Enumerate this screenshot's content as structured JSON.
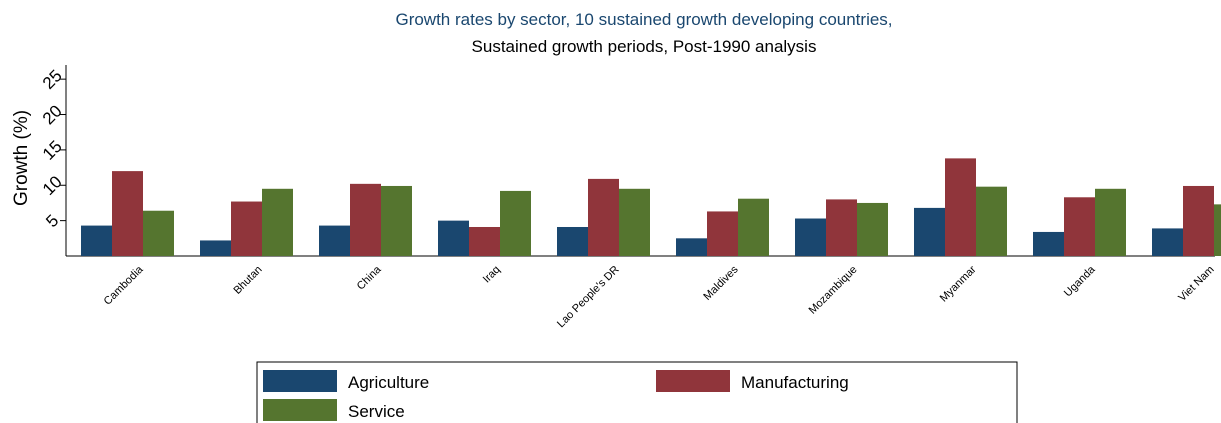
{
  "chart_data": {
    "type": "bar",
    "title": "Growth rates by sector, 10 sustained growth developing countries,",
    "subtitle": "Sustained growth periods, Post-1990 analysis",
    "xlabel": "",
    "ylabel": "Growth (%)",
    "ylim": [
      0,
      27
    ],
    "yticks": [
      5,
      10,
      15,
      20,
      25
    ],
    "categories": [
      "Cambodia",
      "Bhutan",
      "China",
      "Iraq",
      "Lao People's DR",
      "Maldives",
      "Mozambique",
      "Myanmar",
      "Uganda",
      "Viet Nam"
    ],
    "series": [
      {
        "name": "Agriculture",
        "values": [
          4.3,
          2.2,
          4.3,
          5.0,
          4.1,
          2.5,
          5.3,
          6.8,
          3.4,
          3.9
        ]
      },
      {
        "name": "Manufacturing",
        "values": [
          12.0,
          7.7,
          10.2,
          4.1,
          10.9,
          6.3,
          8.0,
          13.8,
          8.3,
          9.9
        ]
      },
      {
        "name": "Service",
        "values": [
          6.4,
          9.5,
          9.9,
          9.2,
          9.5,
          8.1,
          7.5,
          9.8,
          9.5,
          7.3
        ]
      }
    ],
    "colors": {
      "Agriculture": "#1a476f",
      "Manufacturing": "#90353b",
      "Service": "#55752f",
      "title": "#1a476f"
    },
    "grid": false,
    "legend_position": "bottom"
  }
}
